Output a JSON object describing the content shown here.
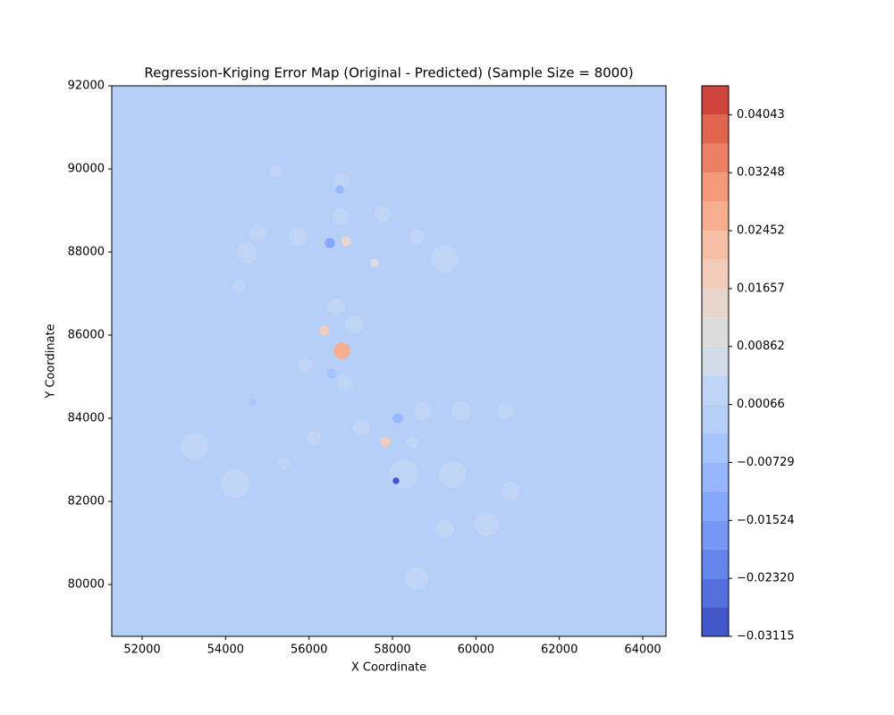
{
  "chart_data": {
    "type": "contour",
    "title": "Regression-Kriging Error Map (Original - Predicted) (Sample Size = 8000)",
    "x_label": "X Coordinate",
    "y_label": "Y Coordinate",
    "xlim": [
      51271,
      64557
    ],
    "ylim": [
      78753,
      92000
    ],
    "xticks": [
      52000,
      54000,
      56000,
      58000,
      60000,
      62000,
      64000
    ],
    "yticks": [
      80000,
      82000,
      84000,
      86000,
      88000,
      90000,
      92000
    ],
    "background_value": -0.001,
    "levels": [
      -0.03115,
      -0.02717,
      -0.0232,
      -0.01922,
      -0.01524,
      -0.01127,
      -0.00729,
      -0.00332,
      0.00066,
      0.00464,
      0.00862,
      0.01259,
      0.01657,
      0.02055,
      0.02452,
      0.0285,
      0.03248,
      0.03645,
      0.04043,
      0.0444
    ],
    "colors": [
      "#4358cb",
      "#5470de",
      "#6485ec",
      "#7597f6",
      "#85a8fc",
      "#96b7ff",
      "#a6c4fe",
      "#b5cff8",
      "#c0d4f5",
      "#d2dbe8",
      "#dddcdc",
      "#e8d6cc",
      "#f1ccb8",
      "#f6bfa6",
      "#f7ad90",
      "#f5997a",
      "#ec8064",
      "#e0654f",
      "#cf453c"
    ],
    "colorbar_ticks": [
      {
        "value": -0.03115,
        "label": "−0.03115"
      },
      {
        "value": -0.0232,
        "label": "−0.02320"
      },
      {
        "value": -0.01524,
        "label": "−0.01524"
      },
      {
        "value": -0.00729,
        "label": "−0.00729"
      },
      0.00066,
      0.00862,
      0.01657,
      0.02452,
      0.03248,
      0.04043
    ],
    "spots": {
      "x": [
        54500,
        54760,
        55730,
        56760,
        57770,
        58580,
        59250,
        56650,
        57080,
        55910,
        56850,
        58720,
        59660,
        60700,
        53250,
        54240,
        55400,
        56120,
        57250,
        58490,
        58270,
        59440,
        60830,
        60250,
        59260,
        58570,
        54320,
        55200,
        56780,
        56370,
        56885,
        57570,
        57828,
        58085,
        56500,
        56735,
        58128,
        56542,
        54657,
        56790
      ],
      "y": [
        87980,
        88470,
        88360,
        88850,
        88910,
        88370,
        87840,
        86680,
        86250,
        85280,
        84850,
        84170,
        84170,
        84180,
        83320,
        82430,
        82920,
        83520,
        83780,
        83420,
        82660,
        82650,
        82260,
        81460,
        81330,
        80150,
        87180,
        89950,
        89700,
        86110,
        88260,
        87740,
        83440,
        82495,
        88215,
        89500,
        83998,
        85075,
        84390,
        85620
      ],
      "values": [
        0.003,
        0.003,
        0.003,
        0.003,
        0.003,
        0.003,
        0.003,
        0.003,
        0.003,
        0.003,
        0.003,
        0.003,
        0.003,
        0.003,
        0.003,
        0.003,
        0.003,
        0.003,
        0.003,
        0.003,
        0.003,
        0.003,
        0.003,
        0.003,
        0.003,
        0.003,
        0.003,
        0.003,
        0.003,
        0.02,
        0.015,
        0.012,
        0.02,
        -0.03,
        -0.015,
        -0.008,
        -0.01,
        -0.006,
        -0.006,
        0.025
      ],
      "r": [
        250,
        200,
        220,
        200,
        200,
        180,
        330,
        200,
        220,
        180,
        200,
        220,
        240,
        200,
        330,
        350,
        150,
        180,
        200,
        150,
        350,
        330,
        220,
        300,
        220,
        280,
        150,
        150,
        200,
        120,
        120,
        100,
        120,
        80,
        120,
        100,
        120,
        120,
        80,
        200
      ]
    }
  }
}
